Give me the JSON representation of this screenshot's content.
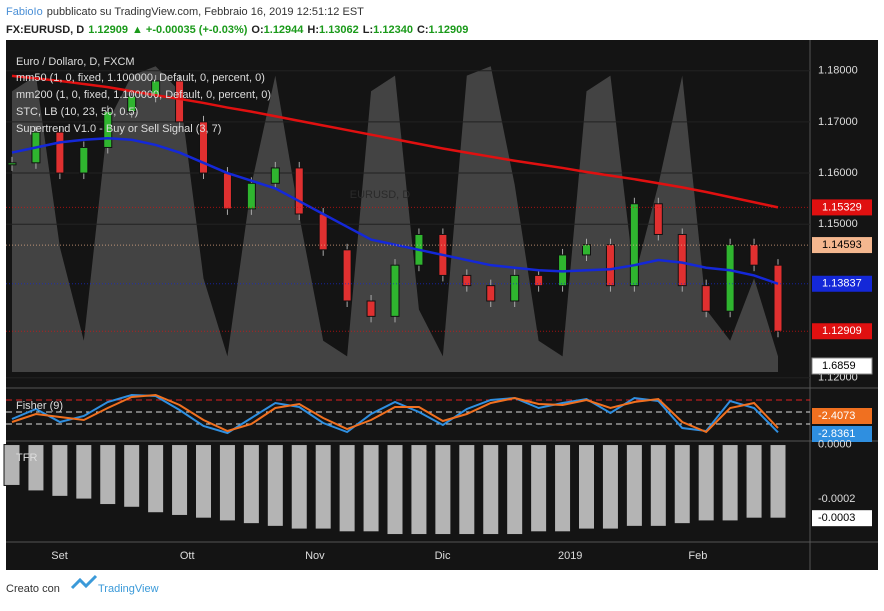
{
  "header": {
    "author": "FabioIo",
    "published": "pubblicato su TradingView.com, Febbraio 16, 2019 12:51:12 EST",
    "symbol": "FX:EURUSD, D",
    "last": "1.12909",
    "change": "+-0.00035 (+-0.03%)",
    "o_label": "O:",
    "o": "1.12944",
    "h_label": "H:",
    "h": "1.13062",
    "l_label": "L:",
    "l": "1.12340",
    "c_label": "C:",
    "c": "1.12909"
  },
  "legend": [
    "Euro / Dollaro, D, FXCM",
    "mm50 (1, 0, fixed, 1.100000, Default, 0, percent, 0)",
    "mm200 (1, 0, fixed, 1.100000, Default, 0, percent, 0)",
    "STC, LB (10, 23, 50, 0.5)",
    "Supertrend V1.0 - Buy or Sell Signal (3, 7)"
  ],
  "watermark": "EURUSD, D",
  "chart_data": {
    "type": "candlestick",
    "x_labels": [
      "Set",
      "Ott",
      "Nov",
      "Dic",
      "2019",
      "Feb"
    ],
    "ylim": [
      1.118,
      1.186
    ],
    "yticks": [
      {
        "value": 1.18,
        "label": "1.18000"
      },
      {
        "value": 1.17,
        "label": "1.17000"
      },
      {
        "value": 1.16,
        "label": "1.16000"
      },
      {
        "value": 1.15,
        "label": "1.15000"
      },
      {
        "value": 1.12,
        "label": "1.12000"
      }
    ],
    "closes": [
      1.162,
      1.168,
      1.16,
      1.165,
      1.172,
      1.175,
      1.178,
      1.17,
      1.16,
      1.153,
      1.158,
      1.161,
      1.152,
      1.145,
      1.135,
      1.132,
      1.142,
      1.148,
      1.14,
      1.138,
      1.135,
      1.14,
      1.138,
      1.144,
      1.146,
      1.138,
      1.154,
      1.148,
      1.138,
      1.133,
      1.146,
      1.142,
      1.12909
    ],
    "series": [
      {
        "name": "mm200",
        "color": "#e01010",
        "values": [
          1.179,
          1.1785,
          1.178,
          1.1774,
          1.1768,
          1.176,
          1.1752,
          1.1745,
          1.1737,
          1.1728,
          1.172,
          1.1711,
          1.1702,
          1.1693,
          1.1684,
          1.1675,
          1.1666,
          1.1657,
          1.1648,
          1.164,
          1.1632,
          1.1624,
          1.1617,
          1.161,
          1.1602,
          1.1595,
          1.1588,
          1.158,
          1.1572,
          1.1563,
          1.1553,
          1.1543,
          1.15329
        ]
      },
      {
        "name": "mm50",
        "color": "#1428d8",
        "values": [
          1.164,
          1.165,
          1.166,
          1.1665,
          1.1668,
          1.1665,
          1.1655,
          1.164,
          1.162,
          1.16,
          1.1585,
          1.157,
          1.1545,
          1.152,
          1.1495,
          1.147,
          1.146,
          1.145,
          1.144,
          1.143,
          1.142,
          1.1415,
          1.141,
          1.1408,
          1.141,
          1.1412,
          1.142,
          1.143,
          1.1425,
          1.1415,
          1.141,
          1.14,
          1.13837
        ]
      }
    ],
    "stc": {
      "ylim": [
        0,
        100
      ],
      "values": [
        90,
        95,
        40,
        10,
        80,
        95,
        98,
        90,
        30,
        5,
        60,
        95,
        50,
        10,
        5,
        90,
        95,
        20,
        5,
        95,
        98,
        60,
        10,
        5,
        90,
        95,
        30,
        60,
        95,
        20,
        10,
        30,
        5
      ]
    },
    "price_tags": [
      {
        "value": 1.15329,
        "label": "1.15329",
        "color": "#e01010"
      },
      {
        "value": 1.14593,
        "label": "1.14593",
        "color": "#f4b78f"
      },
      {
        "value": 1.13837,
        "label": "1.13837",
        "color": "#1428d8"
      },
      {
        "value": 1.12909,
        "label": "1.12909",
        "color": "#e01010"
      }
    ],
    "stc_tag": "1.6859",
    "fisher": {
      "title": "Fisher (9)",
      "ylim": [
        -3.4,
        1.2
      ],
      "series": [
        {
          "name": "Fisher",
          "color": "#2f8fe0",
          "values": [
            -1.5,
            -0.5,
            -1.8,
            -1.2,
            0.2,
            0.9,
            0.8,
            -0.6,
            -2.2,
            -2.9,
            -1.4,
            0.1,
            -0.3,
            -1.9,
            -2.8,
            -1.0,
            0.2,
            -0.8,
            -2.1,
            -0.5,
            0.4,
            0.6,
            -0.4,
            0.1,
            0.5,
            -0.9,
            0.6,
            0.3,
            -2.4,
            -2.7,
            0.3,
            -0.4,
            -2.8361
          ]
        },
        {
          "name": "Trigger",
          "color": "#f07020",
          "values": [
            -1.8,
            -1.0,
            -1.3,
            -1.6,
            -0.4,
            0.7,
            0.9,
            -0.1,
            -1.6,
            -2.7,
            -2.0,
            -0.4,
            0.0,
            -1.4,
            -2.5,
            -1.6,
            -0.3,
            -0.3,
            -1.7,
            -1.0,
            0.1,
            0.6,
            0.0,
            -0.1,
            0.4,
            -0.4,
            0.2,
            0.5,
            -1.8,
            -2.8,
            -0.4,
            0.1,
            -2.4073
          ]
        }
      ],
      "tags": [
        {
          "value": -2.4073,
          "label": "-2.4073",
          "color": "#f07020"
        },
        {
          "value": -2.8361,
          "label": "-2.8361",
          "color": "#2f8fe0"
        }
      ]
    },
    "tfr": {
      "title": "TFR",
      "ylim": [
        -0.00035,
        2e-06
      ],
      "yticks": [
        {
          "value": 0,
          "label": "0.0000"
        },
        {
          "value": -0.0002,
          "label": "-0.0002"
        }
      ],
      "values": [
        -0.00015,
        -0.00017,
        -0.00019,
        -0.0002,
        -0.00022,
        -0.00023,
        -0.00025,
        -0.00026,
        -0.00027,
        -0.00028,
        -0.00029,
        -0.0003,
        -0.00031,
        -0.00031,
        -0.00032,
        -0.00032,
        -0.00033,
        -0.00033,
        -0.00033,
        -0.00033,
        -0.00033,
        -0.00033,
        -0.00032,
        -0.00032,
        -0.00031,
        -0.00031,
        -0.0003,
        -0.0003,
        -0.00029,
        -0.00028,
        -0.00028,
        -0.00027,
        -0.00027
      ],
      "tag": {
        "value": -0.00027,
        "label": "-0.0003"
      }
    }
  },
  "footer": {
    "prefix": "Creato con",
    "brand": "TradingView"
  }
}
